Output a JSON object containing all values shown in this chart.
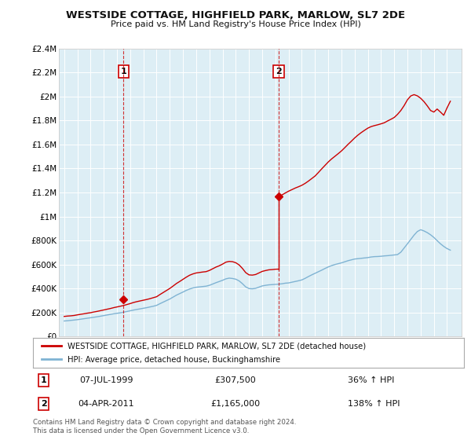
{
  "title": "WESTSIDE COTTAGE, HIGHFIELD PARK, MARLOW, SL7 2DE",
  "subtitle": "Price paid vs. HM Land Registry's House Price Index (HPI)",
  "background_color": "#ffffff",
  "plot_bg_color": "#ddeef5",
  "grid_color": "#ffffff",
  "ylim": [
    0,
    2400000
  ],
  "yticks": [
    0,
    200000,
    400000,
    600000,
    800000,
    1000000,
    1200000,
    1400000,
    1600000,
    1800000,
    2000000,
    2200000,
    2400000
  ],
  "ytick_labels": [
    "£0",
    "£200K",
    "£400K",
    "£600K",
    "£800K",
    "£1M",
    "£1.2M",
    "£1.4M",
    "£1.6M",
    "£1.8M",
    "£2M",
    "£2.2M",
    "£2.4M"
  ],
  "sale1_x": 1999.5,
  "sale1_y": 307500,
  "sale1_label": "1",
  "sale2_x": 2011.25,
  "sale2_y": 1165000,
  "sale2_label": "2",
  "red_line_color": "#cc0000",
  "blue_line_color": "#7fb3d3",
  "marker_color": "#cc0000",
  "annotation_box_edge_color": "#cc0000",
  "annotation_box_face_color": "#ffffff",
  "annotation_text_color": "#000000",
  "legend_line1": "WESTSIDE COTTAGE, HIGHFIELD PARK, MARLOW, SL7 2DE (detached house)",
  "legend_line2": "HPI: Average price, detached house, Buckinghamshire",
  "table_row1_num": "1",
  "table_row1_date": "07-JUL-1999",
  "table_row1_price": "£307,500",
  "table_row1_hpi": "36% ↑ HPI",
  "table_row2_num": "2",
  "table_row2_date": "04-APR-2011",
  "table_row2_price": "£1,165,000",
  "table_row2_hpi": "138% ↑ HPI",
  "footer": "Contains HM Land Registry data © Crown copyright and database right 2024.\nThis data is licensed under the Open Government Licence v3.0.",
  "hpi_years": [
    1995,
    1995.25,
    1995.5,
    1995.75,
    1996,
    1996.25,
    1996.5,
    1996.75,
    1997,
    1997.25,
    1997.5,
    1997.75,
    1998,
    1998.25,
    1998.5,
    1998.75,
    1999,
    1999.25,
    1999.5,
    1999.75,
    2000,
    2000.25,
    2000.5,
    2000.75,
    2001,
    2001.25,
    2001.5,
    2001.75,
    2002,
    2002.25,
    2002.5,
    2002.75,
    2003,
    2003.25,
    2003.5,
    2003.75,
    2004,
    2004.25,
    2004.5,
    2004.75,
    2005,
    2005.25,
    2005.5,
    2005.75,
    2006,
    2006.25,
    2006.5,
    2006.75,
    2007,
    2007.25,
    2007.5,
    2007.75,
    2008,
    2008.25,
    2008.5,
    2008.75,
    2009,
    2009.25,
    2009.5,
    2009.75,
    2010,
    2010.25,
    2010.5,
    2010.75,
    2011,
    2011.25,
    2011.5,
    2011.75,
    2012,
    2012.25,
    2012.5,
    2012.75,
    2013,
    2013.25,
    2013.5,
    2013.75,
    2014,
    2014.25,
    2014.5,
    2014.75,
    2015,
    2015.25,
    2015.5,
    2015.75,
    2016,
    2016.25,
    2016.5,
    2016.75,
    2017,
    2017.25,
    2017.5,
    2017.75,
    2018,
    2018.25,
    2018.5,
    2018.75,
    2019,
    2019.25,
    2019.5,
    2019.75,
    2020,
    2020.25,
    2020.5,
    2020.75,
    2021,
    2021.25,
    2021.5,
    2021.75,
    2022,
    2022.25,
    2022.5,
    2022.75,
    2023,
    2023.25,
    2023.5,
    2023.75,
    2024,
    2024.25
  ],
  "hpi_values": [
    130000,
    132000,
    135000,
    138000,
    141000,
    145000,
    149000,
    153000,
    157000,
    161000,
    165000,
    170000,
    175000,
    180000,
    185000,
    190000,
    194000,
    198000,
    203000,
    209000,
    215000,
    221000,
    226000,
    231000,
    236000,
    241000,
    247000,
    253000,
    260000,
    274000,
    287000,
    300000,
    313000,
    329000,
    345000,
    358000,
    371000,
    385000,
    396000,
    405000,
    411000,
    414000,
    417000,
    420000,
    427000,
    438000,
    449000,
    459000,
    469000,
    481000,
    487000,
    484000,
    478000,
    464000,
    441000,
    414000,
    400000,
    398000,
    402000,
    412000,
    422000,
    427000,
    431000,
    433000,
    435000,
    437000,
    440000,
    445000,
    447000,
    453000,
    459000,
    465000,
    472000,
    485000,
    500000,
    514000,
    527000,
    540000,
    553000,
    567000,
    580000,
    591000,
    600000,
    607000,
    614000,
    623000,
    632000,
    639000,
    646000,
    649000,
    652000,
    655000,
    658000,
    663000,
    666000,
    667000,
    669000,
    672000,
    674000,
    677000,
    680000,
    683000,
    703000,
    738000,
    773000,
    809000,
    845000,
    875000,
    890000,
    880000,
    866000,
    848000,
    826000,
    799000,
    773000,
    751000,
    733000,
    720000
  ],
  "red_line_pre_years": [
    1995,
    1995.25,
    1995.5,
    1995.75,
    1996,
    1996.25,
    1996.5,
    1996.75,
    1997,
    1997.25,
    1997.5,
    1997.75,
    1998,
    1998.25,
    1998.5,
    1998.75,
    1999,
    1999.25,
    1999.5,
    1999.75,
    2000,
    2000.25,
    2000.5,
    2000.75,
    2001,
    2001.25,
    2001.5,
    2001.75,
    2002,
    2002.25,
    2002.5,
    2002.75,
    2003,
    2003.25,
    2003.5,
    2003.75,
    2004,
    2004.25,
    2004.5,
    2004.75,
    2005,
    2005.25,
    2005.5,
    2005.75,
    2006,
    2006.25,
    2006.5,
    2006.75,
    2007,
    2007.25,
    2007.5,
    2007.75,
    2008,
    2008.25,
    2008.5,
    2008.75,
    2009,
    2009.25,
    2009.5,
    2009.75,
    2010,
    2010.25,
    2010.5,
    2010.75,
    2011,
    2011.25
  ],
  "red_line_pre_values": [
    168000,
    171000,
    173000,
    176000,
    181000,
    186000,
    190000,
    195000,
    199000,
    205000,
    210000,
    216000,
    222000,
    228000,
    234000,
    241000,
    247000,
    253000,
    259000,
    267000,
    275000,
    284000,
    291000,
    297000,
    303000,
    309000,
    316000,
    324000,
    332000,
    350000,
    367000,
    384000,
    401000,
    421000,
    442000,
    459000,
    477000,
    495000,
    511000,
    522000,
    530000,
    534000,
    538000,
    541000,
    551000,
    565000,
    579000,
    590000,
    604000,
    620000,
    626000,
    624000,
    615000,
    597000,
    568000,
    533000,
    514000,
    512000,
    517000,
    530000,
    543000,
    550000,
    556000,
    558000,
    561000,
    562000
  ],
  "red_line_post_years": [
    2011.25,
    2011.5,
    2011.75,
    2012,
    2012.25,
    2012.5,
    2012.75,
    2013,
    2013.25,
    2013.5,
    2013.75,
    2014,
    2014.25,
    2014.5,
    2014.75,
    2015,
    2015.25,
    2015.5,
    2015.75,
    2016,
    2016.25,
    2016.5,
    2016.75,
    2017,
    2017.25,
    2017.5,
    2017.75,
    2018,
    2018.25,
    2018.5,
    2018.75,
    2019,
    2019.25,
    2019.5,
    2019.75,
    2020,
    2020.25,
    2020.5,
    2020.75,
    2021,
    2021.25,
    2021.5,
    2021.75,
    2022,
    2022.25,
    2022.5,
    2022.75,
    2023,
    2023.25,
    2023.5,
    2023.75,
    2024,
    2024.25
  ],
  "red_line_post_values": [
    1165000,
    1180000,
    1196000,
    1211000,
    1224000,
    1237000,
    1248000,
    1260000,
    1276000,
    1295000,
    1316000,
    1337000,
    1366000,
    1396000,
    1425000,
    1454000,
    1479000,
    1501000,
    1523000,
    1546000,
    1573000,
    1601000,
    1627000,
    1654000,
    1678000,
    1699000,
    1718000,
    1736000,
    1749000,
    1757000,
    1764000,
    1772000,
    1781000,
    1796000,
    1810000,
    1825000,
    1851000,
    1883000,
    1924000,
    1972000,
    2004000,
    2015000,
    2005000,
    1985000,
    1957000,
    1922000,
    1883000,
    1870000,
    1895000,
    1870000,
    1843000,
    1905000,
    1960000
  ],
  "xlim_left": 1994.6,
  "xlim_right": 2025.1
}
